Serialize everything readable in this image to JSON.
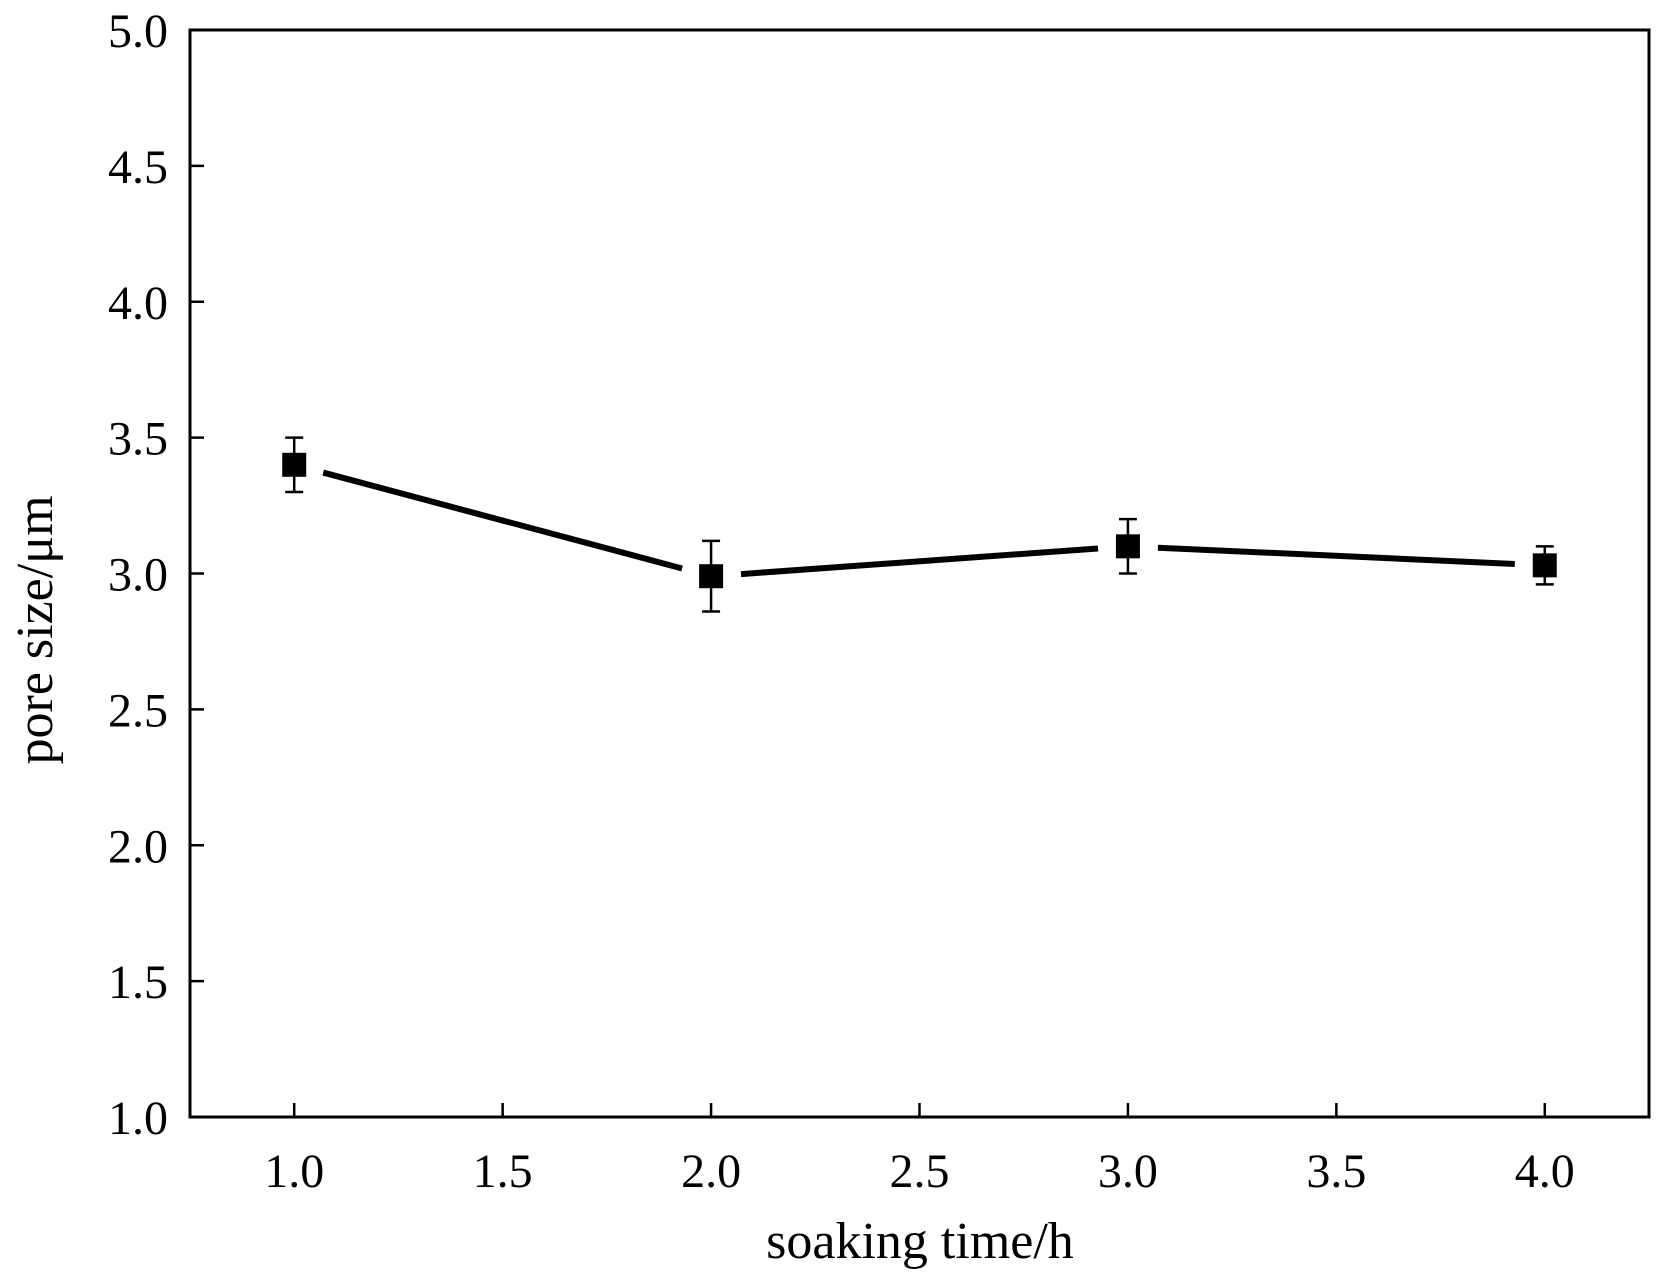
{
  "chart_data": {
    "type": "line",
    "title": "",
    "xlabel": "soaking time/h",
    "ylabel": "pore size/μm",
    "xlim": [
      0.75,
      4.25
    ],
    "ylim": [
      1.0,
      5.0
    ],
    "x_ticks": [
      "1.0",
      "1.5",
      "2.0",
      "2.5",
      "3.0",
      "3.5",
      "4.0"
    ],
    "y_ticks": [
      "1.0",
      "1.5",
      "2.0",
      "2.5",
      "3.0",
      "3.5",
      "4.0",
      "4.5",
      "5.0"
    ],
    "grid": false,
    "legend": "none",
    "series": [
      {
        "x": [
          1.0,
          2.0,
          3.0,
          4.0
        ],
        "y": [
          3.4,
          2.99,
          3.1,
          3.03
        ],
        "error": [
          0.1,
          0.13,
          0.1,
          0.07
        ],
        "marker": "square",
        "color": "#000000"
      }
    ]
  }
}
